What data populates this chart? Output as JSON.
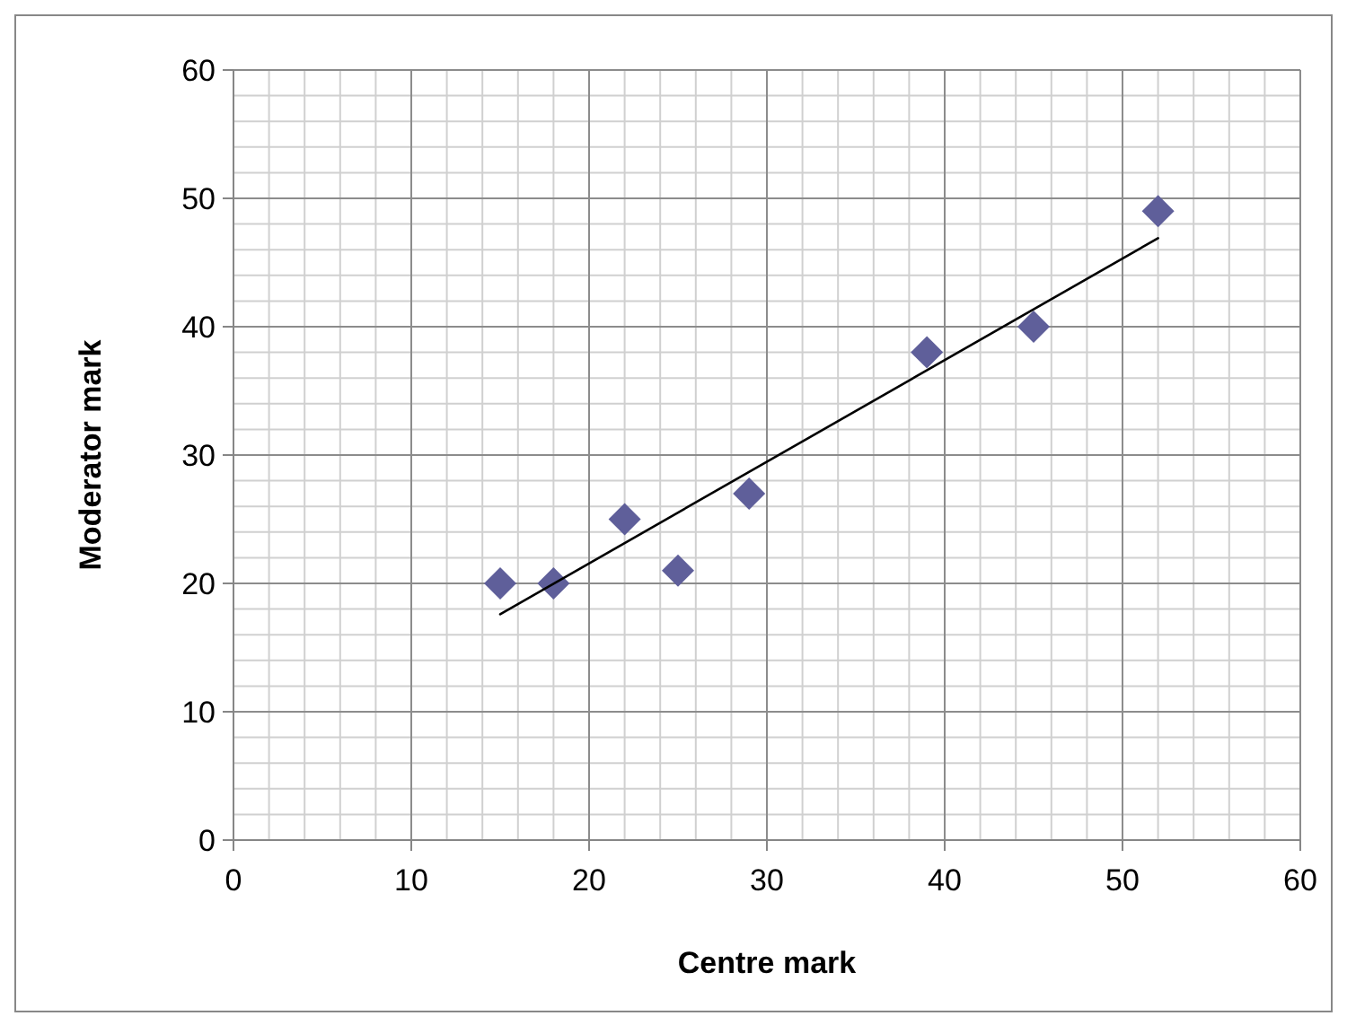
{
  "chart_data": {
    "type": "scatter",
    "xlabel": "Centre mark",
    "ylabel": "Moderator mark",
    "xlim": [
      0,
      60
    ],
    "ylim": [
      0,
      60
    ],
    "xticks": [
      0,
      10,
      20,
      30,
      40,
      50,
      60
    ],
    "yticks": [
      0,
      10,
      20,
      30,
      40,
      50,
      60
    ],
    "grid": true,
    "series": [
      {
        "color": "#5f5f9a",
        "marker": "diamond",
        "x": [
          15,
          18,
          22,
          25,
          29,
          39,
          45,
          52
        ],
        "values": [
          20,
          20,
          25,
          21,
          27,
          38,
          40,
          49
        ]
      },
      {
        "type": "line",
        "color": "#000000",
        "marker": "none",
        "x": [
          15,
          52
        ],
        "values": [
          17.6,
          46.9
        ]
      }
    ]
  }
}
